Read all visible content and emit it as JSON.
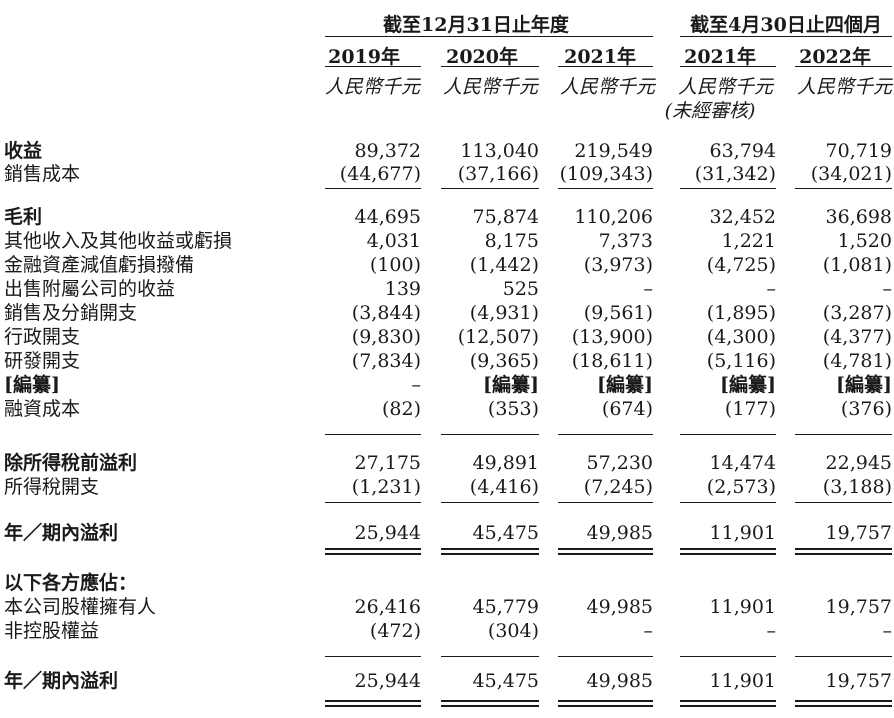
{
  "header": {
    "group1": "截至12月31日止年度",
    "group2": "截至4月30日止四個月",
    "years": [
      "2019年",
      "2020年",
      "2021年",
      "2021年",
      "2022年"
    ],
    "units": [
      "人民幣千元",
      "人民幣千元",
      "人民幣千元",
      "人民幣千元",
      "人民幣千元"
    ],
    "unaudited": "(未經審核)"
  },
  "rows": [
    {
      "label": "收益",
      "values": [
        "89,372",
        "113,040",
        "219,549",
        "63,794",
        "70,719"
      ]
    },
    {
      "label": "銷售成本",
      "values": [
        "(44,677)",
        "(37,166)",
        "(109,343)",
        "(31,342)",
        "(34,021)"
      ]
    },
    {
      "label": "毛利",
      "values": [
        "44,695",
        "75,874",
        "110,206",
        "32,452",
        "36,698"
      ]
    },
    {
      "label": "其他收入及其他收益或虧損",
      "values": [
        "4,031",
        "8,175",
        "7,373",
        "1,221",
        "1,520"
      ]
    },
    {
      "label": "金融資產減值虧損撥備",
      "values": [
        "(100)",
        "(1,442)",
        "(3,973)",
        "(4,725)",
        "(1,081)"
      ]
    },
    {
      "label": "出售附屬公司的收益",
      "values": [
        "139",
        "525",
        "–",
        "–",
        "–"
      ]
    },
    {
      "label": "銷售及分銷開支",
      "values": [
        "(3,844)",
        "(4,931)",
        "(9,561)",
        "(1,895)",
        "(3,287)"
      ]
    },
    {
      "label": "行政開支",
      "values": [
        "(9,830)",
        "(12,507)",
        "(13,900)",
        "(4,300)",
        "(4,377)"
      ]
    },
    {
      "label": "研發開支",
      "values": [
        "(7,834)",
        "(9,365)",
        "(18,611)",
        "(5,116)",
        "(4,781)"
      ]
    },
    {
      "label": "[編纂]",
      "values": [
        "–",
        "[編纂]",
        "[編纂]",
        "[編纂]",
        "[編纂]"
      ]
    },
    {
      "label": "融資成本",
      "values": [
        "(82)",
        "(353)",
        "(674)",
        "(177)",
        "(376)"
      ]
    },
    {
      "label": "除所得稅前溢利",
      "values": [
        "27,175",
        "49,891",
        "57,230",
        "14,474",
        "22,945"
      ]
    },
    {
      "label": "所得稅開支",
      "values": [
        "(1,231)",
        "(4,416)",
        "(7,245)",
        "(2,573)",
        "(3,188)"
      ]
    },
    {
      "label": "年／期內溢利",
      "values": [
        "25,944",
        "45,475",
        "49,985",
        "11,901",
        "19,757"
      ]
    },
    {
      "label": "以下各方應佔：",
      "values": [
        "",
        "",
        "",
        "",
        ""
      ]
    },
    {
      "label": "本公司股權擁有人",
      "values": [
        "26,416",
        "45,779",
        "49,985",
        "11,901",
        "19,757"
      ]
    },
    {
      "label": "非控股權益",
      "values": [
        "(472)",
        "(304)",
        "–",
        "–",
        "–"
      ]
    },
    {
      "label": "年／期內溢利",
      "values": [
        "25,944",
        "45,475",
        "49,985",
        "11,901",
        "19,757"
      ]
    }
  ]
}
